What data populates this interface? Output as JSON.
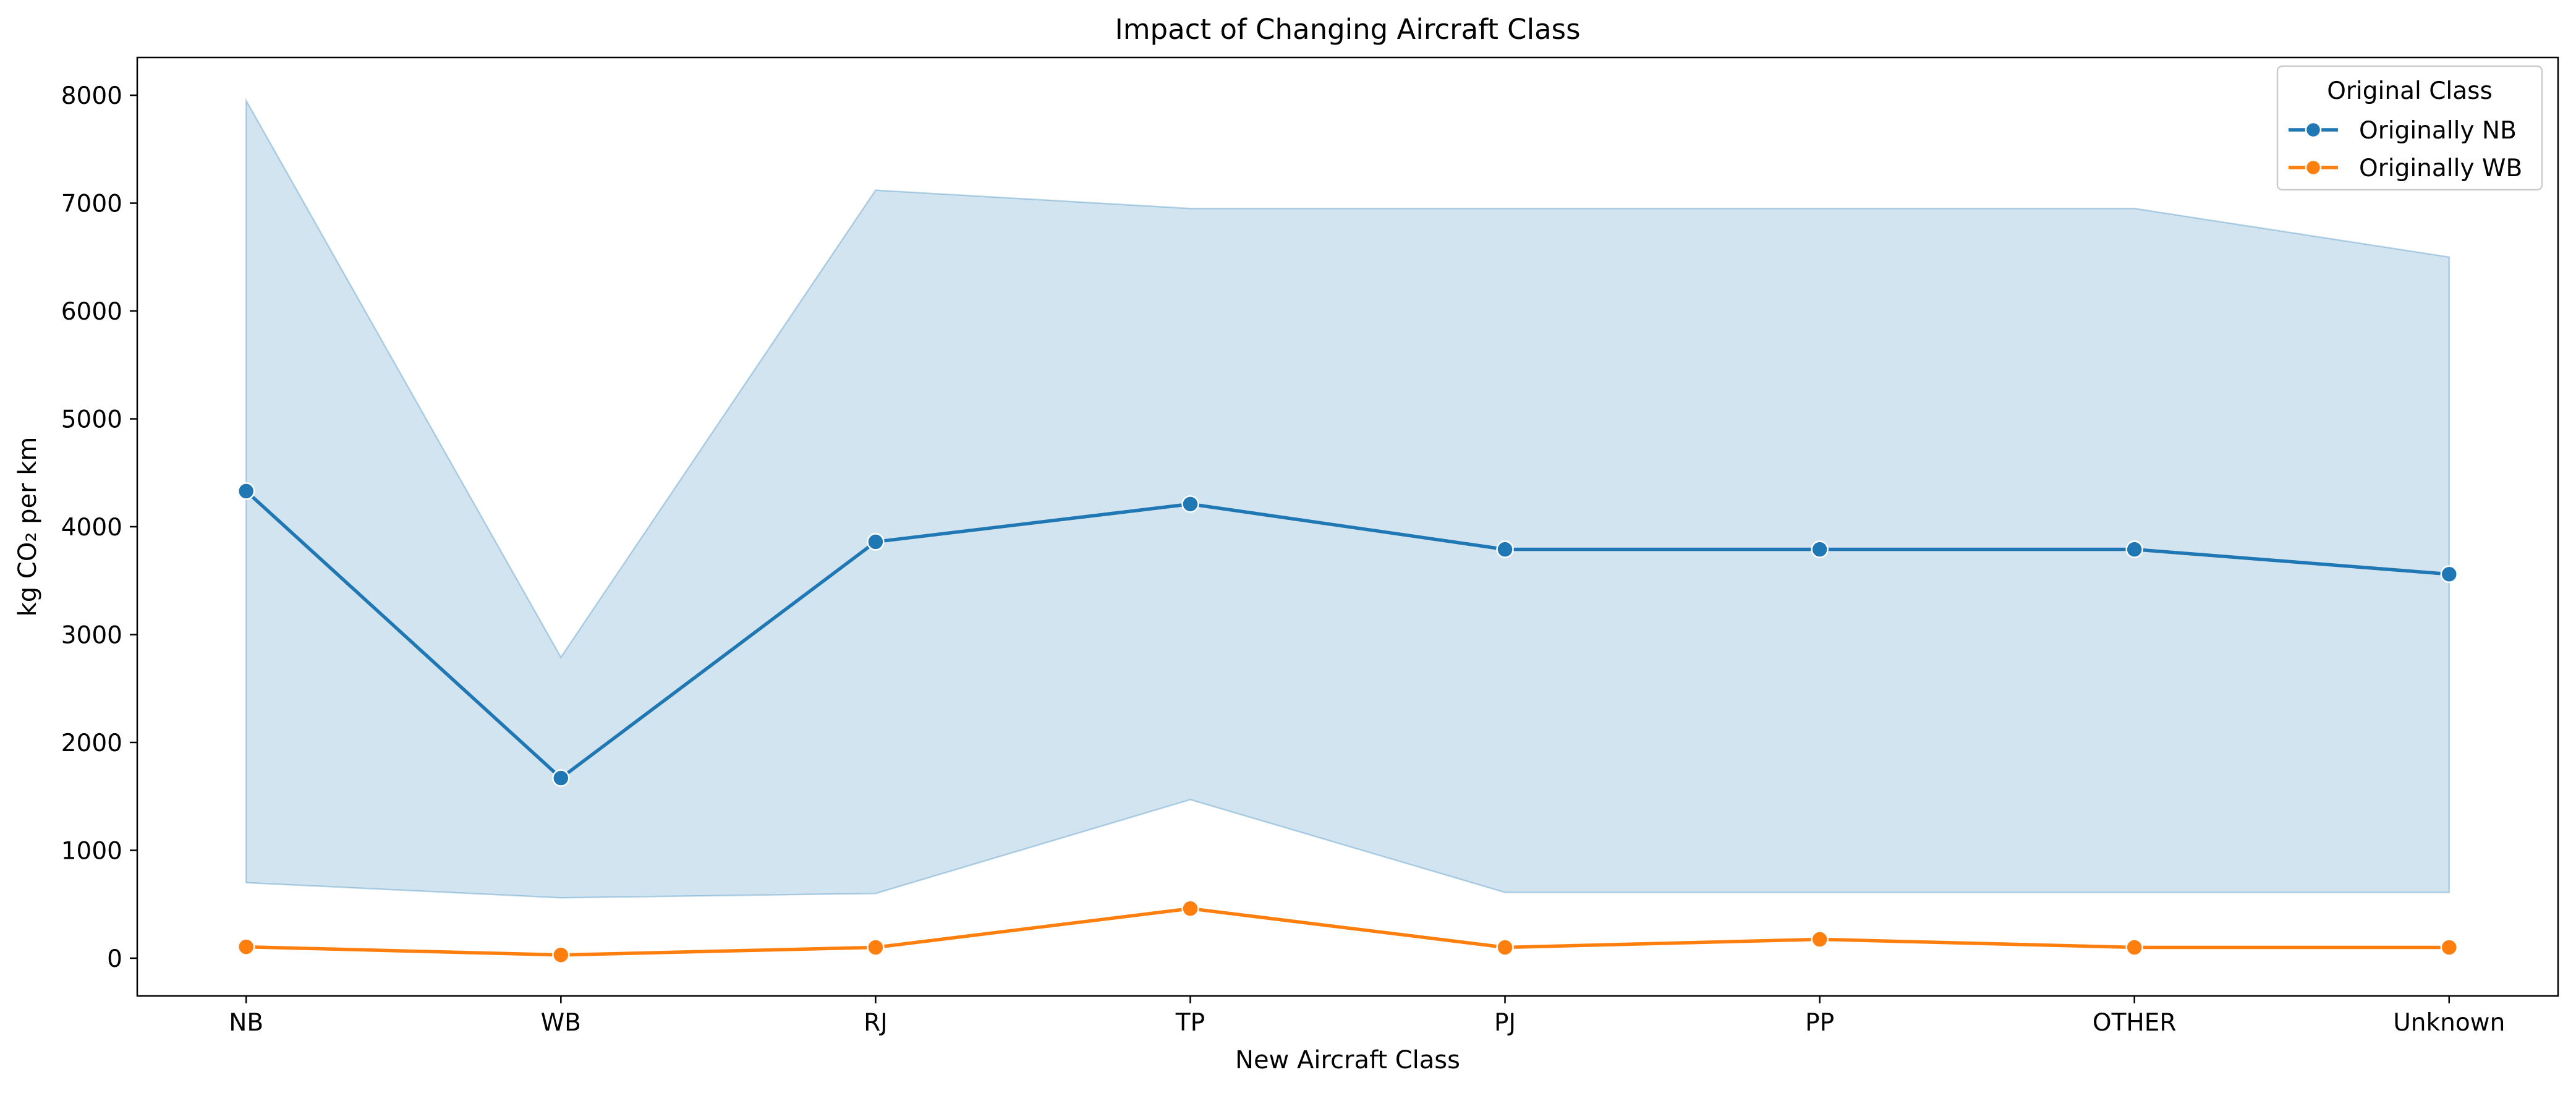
{
  "chart_data": {
    "type": "line",
    "title": "Impact of Changing Aircraft Class",
    "xlabel": "New Aircraft Class",
    "ylabel": "kg CO₂ per km",
    "categories": [
      "NB",
      "WB",
      "RJ",
      "TP",
      "PJ",
      "PP",
      "OTHER",
      "Unknown"
    ],
    "ylim": [
      -350,
      8350
    ],
    "yticks": [
      0,
      1000,
      2000,
      3000,
      4000,
      5000,
      6000,
      7000,
      8000
    ],
    "grid": false,
    "legend": {
      "title": "Original Class",
      "placement": "top-right"
    },
    "series": [
      {
        "name": "Originally NB",
        "color": "#1f77b4",
        "values": [
          4330,
          1670,
          3860,
          4210,
          3790,
          3790,
          3790,
          3560
        ],
        "band_upper": [
          7950,
          2790,
          7120,
          6950,
          6950,
          6950,
          6950,
          6500
        ],
        "band_lower": [
          700,
          560,
          600,
          1470,
          610,
          610,
          610,
          610
        ],
        "band_color": "#1f77b4"
      },
      {
        "name": "Originally WB",
        "color": "#ff7f0e",
        "values": [
          105,
          30,
          100,
          460,
          100,
          175,
          100,
          100
        ]
      }
    ]
  }
}
